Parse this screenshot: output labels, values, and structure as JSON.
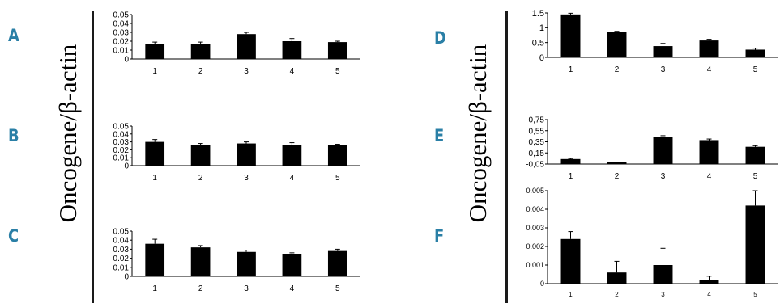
{
  "y_axis_label": "Oncogene/β-actin",
  "colors": {
    "panel_letter": "#2a7fa6",
    "bar": "#000000"
  },
  "panels": [
    {
      "letter": "A"
    },
    {
      "letter": "B"
    },
    {
      "letter": "C"
    },
    {
      "letter": "D"
    },
    {
      "letter": "E"
    },
    {
      "letter": "F"
    }
  ],
  "chart_data": [
    {
      "panel": "A",
      "type": "bar",
      "categories": [
        "1",
        "2",
        "3",
        "4",
        "5"
      ],
      "values": [
        0.017,
        0.017,
        0.028,
        0.02,
        0.019
      ],
      "errors": [
        0.002,
        0.002,
        0.002,
        0.003,
        0.001
      ],
      "ylim": [
        0,
        0.05
      ],
      "yticks": [
        "0",
        "0.01",
        "0.02",
        "0.03",
        "0.04",
        "0.05"
      ],
      "title": "",
      "xlabel": "",
      "ylabel": "",
      "grid": false
    },
    {
      "panel": "B",
      "type": "bar",
      "categories": [
        "1",
        "2",
        "3",
        "4",
        "5"
      ],
      "values": [
        0.03,
        0.026,
        0.028,
        0.026,
        0.026
      ],
      "errors": [
        0.003,
        0.002,
        0.002,
        0.003,
        0.001
      ],
      "ylim": [
        0,
        0.05
      ],
      "yticks": [
        "0",
        "0.01",
        "0.02",
        "0.03",
        "0.04",
        "0.05"
      ],
      "title": "",
      "xlabel": "",
      "ylabel": "",
      "grid": false
    },
    {
      "panel": "C",
      "type": "bar",
      "categories": [
        "1",
        "2",
        "3",
        "4",
        "5"
      ],
      "values": [
        0.036,
        0.032,
        0.027,
        0.025,
        0.028
      ],
      "errors": [
        0.005,
        0.002,
        0.002,
        0.001,
        0.002
      ],
      "ylim": [
        0,
        0.05
      ],
      "yticks": [
        "0",
        "0.01",
        "0.02",
        "0.03",
        "0.04",
        "0.05"
      ],
      "title": "",
      "xlabel": "",
      "ylabel": "",
      "grid": false
    },
    {
      "panel": "D",
      "type": "bar",
      "categories": [
        "1",
        "2",
        "3",
        "4",
        "5"
      ],
      "values": [
        1.45,
        0.85,
        0.38,
        0.57,
        0.26
      ],
      "errors": [
        0.04,
        0.03,
        0.09,
        0.04,
        0.05
      ],
      "ylim": [
        0,
        1.5
      ],
      "yticks": [
        "0",
        "0.5",
        "1",
        "1.5"
      ],
      "title": "",
      "xlabel": "",
      "ylabel": "",
      "grid": false
    },
    {
      "panel": "E",
      "type": "bar",
      "categories": [
        "1",
        "2",
        "3",
        "4",
        "5"
      ],
      "values": [
        0.04,
        -0.02,
        0.44,
        0.38,
        0.26
      ],
      "errors": [
        0.01,
        0.0,
        0.02,
        0.02,
        0.02
      ],
      "ylim": [
        -0.05,
        0.75
      ],
      "yticks": [
        "-0,05",
        "0,15",
        "0,35",
        "0,55",
        "0,75"
      ],
      "tick_values": [
        -0.05,
        0.15,
        0.35,
        0.55,
        0.75
      ],
      "title": "",
      "xlabel": "",
      "ylabel": "",
      "grid": false
    },
    {
      "panel": "F",
      "type": "bar",
      "categories": [
        "1",
        "2",
        "3",
        "4",
        "5"
      ],
      "values": [
        0.0024,
        0.0006,
        0.001,
        0.0002,
        0.0042
      ],
      "errors": [
        0.0004,
        0.0006,
        0.0009,
        0.0002,
        0.0008
      ],
      "ylim": [
        0,
        0.005
      ],
      "yticks": [
        "0",
        "0.001",
        "0.002",
        "0.003",
        "0.004",
        "0.005"
      ],
      "title": "",
      "xlabel": "",
      "ylabel": "",
      "grid": false
    }
  ]
}
